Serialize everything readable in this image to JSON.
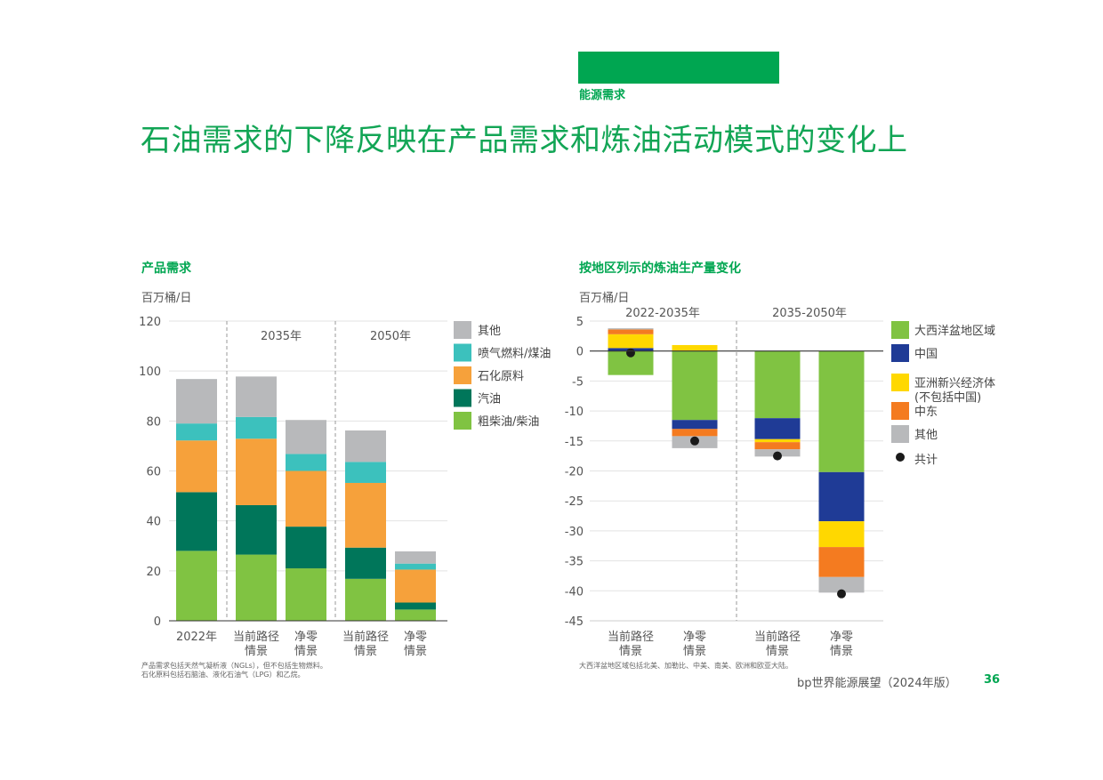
{
  "header": {
    "section_label": "能源需求",
    "title": "石油需求的下降反映在产品需求和炼油活动模式的变化上"
  },
  "colors": {
    "accent": "#00a651",
    "grey": "#b8b9bb",
    "teal": "#3cc1bd",
    "orange": "#f6a13b",
    "dark_green": "#00765a",
    "light_green": "#80c342",
    "navy": "#1f3b96",
    "yellow": "#ffd800",
    "deep_orange": "#f47b20"
  },
  "chart_data": [
    {
      "type": "bar",
      "stacked": true,
      "title": "产品需求",
      "ylabel": "百万桶/日",
      "ylim": [
        0,
        120
      ],
      "yticks": [
        "0",
        "20",
        "40",
        "60",
        "80",
        "100",
        "120"
      ],
      "groups": [
        "2035年",
        "2050年"
      ],
      "categories": [
        "2022年",
        "当前路径\n情景",
        "净零\n情景",
        "当前路径\n情景",
        "净零\n情景"
      ],
      "series": [
        {
          "name": "粗柴油/柴油",
          "color": "#80c342",
          "values": [
            28,
            26.5,
            21,
            16.8,
            4.5
          ]
        },
        {
          "name": "汽油",
          "color": "#00765a",
          "values": [
            23.5,
            19.8,
            16.7,
            12.5,
            2.8
          ]
        },
        {
          "name": "石化原料",
          "color": "#f6a13b",
          "values": [
            20.7,
            26.6,
            22.3,
            25.9,
            13.2
          ]
        },
        {
          "name": "喷气燃料/煤油",
          "color": "#3cc1bd",
          "values": [
            6.8,
            8.7,
            6.8,
            8.4,
            2.4
          ]
        },
        {
          "name": "其他",
          "color": "#b8b9bb",
          "values": [
            17.8,
            16.2,
            13.6,
            12.6,
            4.9
          ]
        }
      ],
      "legend": [
        "其他",
        "喷气燃料/煤油",
        "石化原料",
        "汽油",
        "粗柴油/柴油"
      ],
      "legend_position": "right",
      "grid": true,
      "footnote": [
        "产品需求包括天然气凝析液（NGLs），但不包括生物燃料。",
        "石化原料包括石脑油、液化石油气（LPG）和乙烷。"
      ]
    },
    {
      "type": "bar",
      "stacked": true,
      "title": "按地区列示的炼油生产量变化",
      "ylabel": "百万桶/日",
      "ylim": [
        -45,
        5
      ],
      "yticks": [
        "5",
        "0",
        "-5",
        "-10",
        "-15",
        "-20",
        "-25",
        "-30",
        "-35",
        "-40",
        "-45"
      ],
      "groups": [
        "2022-2035年",
        "2035-2050年"
      ],
      "categories": [
        "当前路径\n情景",
        "净零\n情景",
        "当前路径\n情景",
        "净零\n情景"
      ],
      "series": [
        {
          "name": "大西洋盆地区域",
          "color": "#80c342",
          "values": [
            -4,
            -11.5,
            -11.2,
            -20.2
          ]
        },
        {
          "name": "中国",
          "color": "#1f3b96",
          "values": [
            0.5,
            -1.5,
            -3.5,
            -8.2
          ]
        },
        {
          "name": "亚洲新兴经济体\n(不包括中国)",
          "color": "#ffd800",
          "values": [
            2.3,
            1,
            -0.5,
            -4.3
          ]
        },
        {
          "name": "中东",
          "color": "#f47b20",
          "values": [
            0.8,
            -1.2,
            -1.2,
            -5
          ]
        },
        {
          "name": "其他",
          "color": "#b8b9bb",
          "values": [
            0.2,
            -2,
            -1.2,
            -2.6
          ]
        }
      ],
      "totals": {
        "name": "共计",
        "values": [
          -0.3,
          -15,
          -17.5,
          -40.5
        ]
      },
      "legend": [
        "大西洋盆地区域",
        "中国",
        "亚洲新兴经济体\n(不包括中国)",
        "中东",
        "其他",
        "共计"
      ],
      "legend_position": "right",
      "grid": true,
      "footnote": [
        "大西洋盆地区域包括北美、加勒比、中美、南美、欧洲和欧亚大陆。"
      ]
    }
  ],
  "footer": {
    "source": "bp世界能源展望（2024年版）",
    "page_number": "36"
  }
}
